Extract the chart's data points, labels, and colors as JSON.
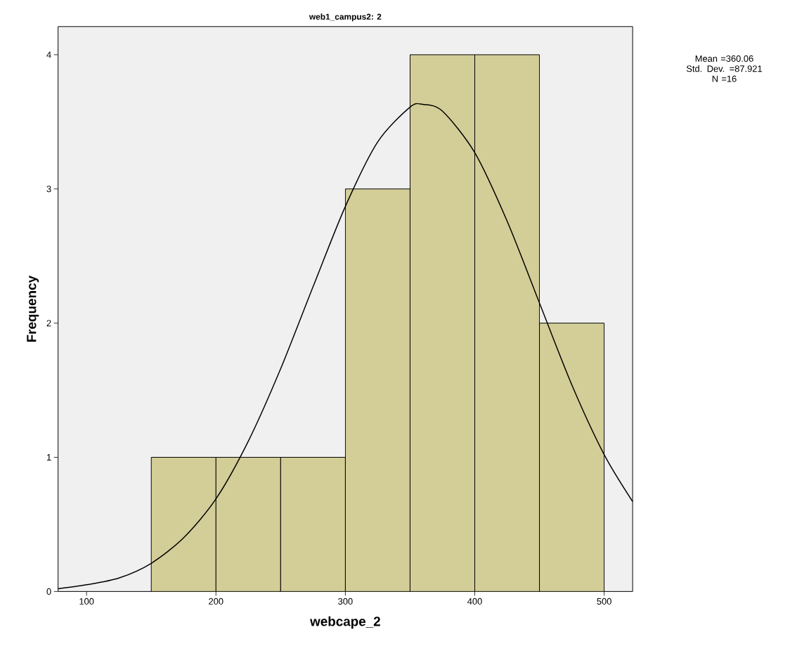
{
  "chart_data": {
    "type": "histogram",
    "title": "web1_campus2: 2",
    "xlabel": "webcape_2",
    "ylabel": "Frequency",
    "annotations": [
      "Mean =360.06\nStd. Dev. =87.921\nN =16"
    ],
    "bins": [
      150,
      200,
      250,
      300,
      350,
      400,
      450,
      500
    ],
    "values": [
      1,
      1,
      1,
      3,
      4,
      4,
      2
    ],
    "color": "#d3cd97",
    "series": [
      {
        "type": "line",
        "color": "#000000",
        "x": [
          78,
          100,
          125,
          150,
          175,
          200,
          225,
          250,
          275,
          300,
          325,
          350,
          360,
          375,
          400,
          425,
          450,
          475,
          500,
          522
        ],
        "values": [
          0.02,
          0.05,
          0.1,
          0.21,
          0.4,
          0.69,
          1.12,
          1.66,
          2.27,
          2.87,
          3.35,
          3.61,
          3.63,
          3.58,
          3.27,
          2.76,
          2.15,
          1.54,
          1.02,
          0.67
        ]
      }
    ],
    "xlim": [
      78,
      522
    ],
    "ylim": [
      0,
      4.21
    ],
    "xticks": [
      100,
      200,
      300,
      400,
      500
    ],
    "yticks": [
      0,
      1,
      2,
      3,
      4
    ],
    "grid": false
  }
}
